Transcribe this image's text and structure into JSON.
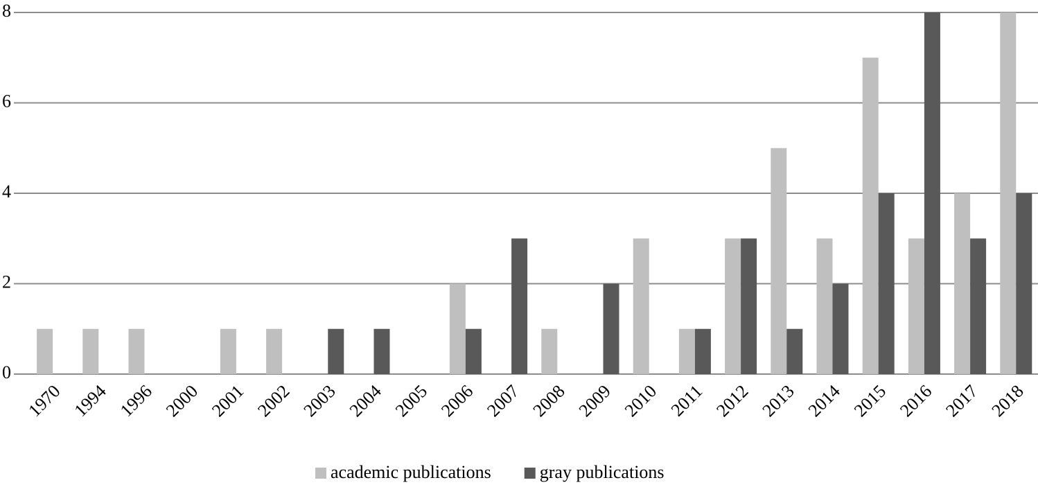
{
  "chart_data": {
    "type": "bar",
    "categories": [
      "1970",
      "1994",
      "1996",
      "2000",
      "2001",
      "2002",
      "2003",
      "2004",
      "2005",
      "2006",
      "2007",
      "2008",
      "2009",
      "2010",
      "2011",
      "2012",
      "2013",
      "2014",
      "2015",
      "2016",
      "2017",
      "2018"
    ],
    "series": [
      {
        "name": "academic publications",
        "color": "#bfbfbf",
        "values": [
          1,
          1,
          1,
          0,
          1,
          1,
          0,
          0,
          0,
          2,
          0,
          1,
          0,
          3,
          1,
          3,
          5,
          3,
          7,
          3,
          4,
          8
        ]
      },
      {
        "name": "gray publications",
        "color": "#595959",
        "values": [
          0,
          0,
          0,
          0,
          0,
          0,
          1,
          1,
          0,
          1,
          3,
          0,
          2,
          0,
          1,
          3,
          1,
          2,
          4,
          8,
          3,
          4
        ]
      }
    ],
    "ylim": [
      0,
      8
    ],
    "yticks": [
      0,
      2,
      4,
      6,
      8
    ],
    "grid": true,
    "legend": "bottom"
  }
}
